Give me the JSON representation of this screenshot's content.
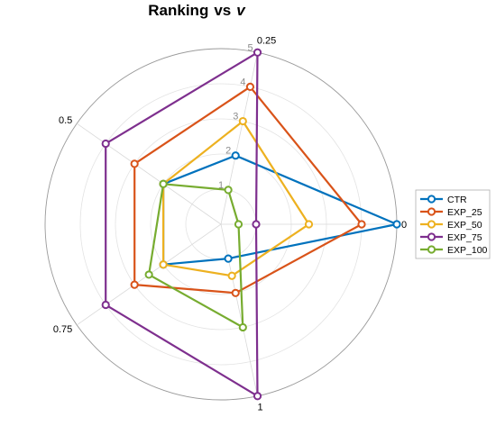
{
  "chart_data": {
    "type": "radar",
    "title": "Ranking",
    "title_sep": "vs",
    "title_var": "v",
    "axes": [
      "0",
      "0.25",
      "0.5",
      "0.75",
      "1"
    ],
    "rlim": [
      0,
      5
    ],
    "ring_ticks": [
      "1",
      "2",
      "3",
      "4",
      "5"
    ],
    "grid": true,
    "legend_position": "right",
    "series": [
      {
        "name": "CTR",
        "color": "#0072BD",
        "values": [
          5,
          2,
          2,
          2,
          1
        ]
      },
      {
        "name": "EXP_25",
        "color": "#D95319",
        "values": [
          4,
          4,
          3,
          3,
          2
        ]
      },
      {
        "name": "EXP_50",
        "color": "#EDB120",
        "values": [
          2.5,
          3,
          2,
          2,
          1.5
        ]
      },
      {
        "name": "EXP_75",
        "color": "#7E2F8E",
        "values": [
          1,
          5,
          4,
          4,
          5
        ]
      },
      {
        "name": "EXP_100",
        "color": "#77AC30",
        "values": [
          0.5,
          1,
          2,
          2.5,
          3
        ]
      }
    ]
  }
}
